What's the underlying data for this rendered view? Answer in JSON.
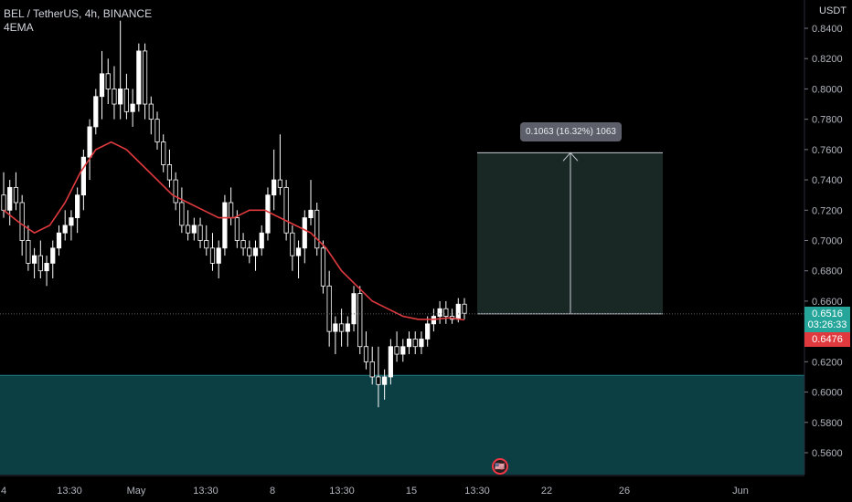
{
  "header": {
    "symbol_line": "BEL / TetherUS, 4h, BINANCE",
    "indicator": "4EMA"
  },
  "price_axis": {
    "currency": "USDT",
    "ticks": [
      "0.8400",
      "0.8200",
      "0.8000",
      "0.7800",
      "0.7600",
      "0.7400",
      "0.7200",
      "0.7000",
      "0.6800",
      "0.6600",
      "0.6400",
      "0.6200",
      "0.6000",
      "0.5800",
      "0.5600"
    ],
    "current_price": "0.6516",
    "countdown": "03:26:33",
    "ema_price": "0.6476"
  },
  "time_axis": {
    "labels": [
      "4",
      "13:30",
      "May",
      "13:30",
      "8",
      "13:30",
      "15",
      "13:30",
      "22",
      "26",
      "Jun"
    ]
  },
  "measure_tool": {
    "label": "0.1063 (16.32%) 1063"
  },
  "colors": {
    "background": "#000000",
    "up_candle": "#ffffff",
    "down_candle": "#ffffff",
    "ema_line": "#e03a3e",
    "demand_zone": "#0c3f43",
    "measure_box": "#1c2b29",
    "price_tag": "#26a69a",
    "ema_tag": "#e03a3e"
  },
  "chart_data": {
    "type": "candlestick",
    "symbol": "BEL / TetherUS",
    "interval": "4h",
    "exchange": "BINANCE",
    "ylim": [
      0.545,
      0.845
    ],
    "candles": [
      [
        0.73,
        0.745,
        0.715,
        0.72
      ],
      [
        0.72,
        0.74,
        0.71,
        0.735
      ],
      [
        0.735,
        0.745,
        0.72,
        0.725
      ],
      [
        0.725,
        0.73,
        0.69,
        0.7
      ],
      [
        0.7,
        0.71,
        0.68,
        0.685
      ],
      [
        0.685,
        0.695,
        0.675,
        0.69
      ],
      [
        0.69,
        0.7,
        0.675,
        0.68
      ],
      [
        0.68,
        0.69,
        0.67,
        0.685
      ],
      [
        0.685,
        0.7,
        0.675,
        0.695
      ],
      [
        0.695,
        0.71,
        0.69,
        0.705
      ],
      [
        0.705,
        0.72,
        0.7,
        0.71
      ],
      [
        0.71,
        0.72,
        0.7,
        0.715
      ],
      [
        0.715,
        0.735,
        0.705,
        0.73
      ],
      [
        0.73,
        0.76,
        0.72,
        0.755
      ],
      [
        0.755,
        0.78,
        0.74,
        0.775
      ],
      [
        0.775,
        0.8,
        0.77,
        0.795
      ],
      [
        0.795,
        0.825,
        0.78,
        0.81
      ],
      [
        0.81,
        0.82,
        0.79,
        0.8
      ],
      [
        0.8,
        0.815,
        0.78,
        0.79
      ],
      [
        0.79,
        0.845,
        0.78,
        0.8
      ],
      [
        0.8,
        0.81,
        0.78,
        0.785
      ],
      [
        0.785,
        0.8,
        0.775,
        0.79
      ],
      [
        0.79,
        0.83,
        0.785,
        0.825
      ],
      [
        0.825,
        0.83,
        0.78,
        0.79
      ],
      [
        0.79,
        0.795,
        0.77,
        0.78
      ],
      [
        0.78,
        0.785,
        0.76,
        0.765
      ],
      [
        0.765,
        0.77,
        0.745,
        0.75
      ],
      [
        0.75,
        0.76,
        0.735,
        0.74
      ],
      [
        0.74,
        0.745,
        0.72,
        0.725
      ],
      [
        0.725,
        0.735,
        0.705,
        0.71
      ],
      [
        0.71,
        0.72,
        0.7,
        0.705
      ],
      [
        0.705,
        0.715,
        0.7,
        0.71
      ],
      [
        0.71,
        0.715,
        0.695,
        0.7
      ],
      [
        0.7,
        0.71,
        0.69,
        0.695
      ],
      [
        0.695,
        0.705,
        0.68,
        0.685
      ],
      [
        0.685,
        0.7,
        0.675,
        0.695
      ],
      [
        0.695,
        0.73,
        0.69,
        0.725
      ],
      [
        0.725,
        0.735,
        0.71,
        0.715
      ],
      [
        0.715,
        0.72,
        0.695,
        0.7
      ],
      [
        0.7,
        0.705,
        0.69,
        0.695
      ],
      [
        0.695,
        0.7,
        0.685,
        0.69
      ],
      [
        0.69,
        0.7,
        0.68,
        0.695
      ],
      [
        0.695,
        0.71,
        0.69,
        0.705
      ],
      [
        0.705,
        0.735,
        0.7,
        0.73
      ],
      [
        0.73,
        0.76,
        0.72,
        0.74
      ],
      [
        0.74,
        0.77,
        0.73,
        0.735
      ],
      [
        0.735,
        0.74,
        0.7,
        0.705
      ],
      [
        0.705,
        0.71,
        0.68,
        0.69
      ],
      [
        0.69,
        0.7,
        0.675,
        0.695
      ],
      [
        0.695,
        0.72,
        0.685,
        0.715
      ],
      [
        0.715,
        0.74,
        0.71,
        0.72
      ],
      [
        0.72,
        0.725,
        0.69,
        0.695
      ],
      [
        0.695,
        0.7,
        0.665,
        0.67
      ],
      [
        0.67,
        0.68,
        0.63,
        0.64
      ],
      [
        0.64,
        0.65,
        0.625,
        0.645
      ],
      [
        0.645,
        0.655,
        0.63,
        0.64
      ],
      [
        0.64,
        0.65,
        0.63,
        0.645
      ],
      [
        0.645,
        0.67,
        0.64,
        0.665
      ],
      [
        0.665,
        0.67,
        0.625,
        0.63
      ],
      [
        0.63,
        0.64,
        0.615,
        0.62
      ],
      [
        0.62,
        0.63,
        0.605,
        0.61
      ],
      [
        0.61,
        0.63,
        0.59,
        0.605
      ],
      [
        0.605,
        0.615,
        0.595,
        0.61
      ],
      [
        0.61,
        0.635,
        0.605,
        0.63
      ],
      [
        0.63,
        0.64,
        0.62,
        0.625
      ],
      [
        0.625,
        0.635,
        0.62,
        0.63
      ],
      [
        0.63,
        0.64,
        0.625,
        0.635
      ],
      [
        0.635,
        0.64,
        0.625,
        0.63
      ],
      [
        0.63,
        0.64,
        0.625,
        0.635
      ],
      [
        0.635,
        0.65,
        0.63,
        0.645
      ],
      [
        0.645,
        0.655,
        0.64,
        0.65
      ],
      [
        0.65,
        0.66,
        0.645,
        0.655
      ],
      [
        0.655,
        0.66,
        0.645,
        0.65
      ],
      [
        0.65,
        0.655,
        0.645,
        0.648
      ],
      [
        0.648,
        0.662,
        0.646,
        0.658
      ],
      [
        0.658,
        0.662,
        0.648,
        0.652
      ]
    ],
    "ema_4": [
      0.72,
      0.712,
      0.705,
      0.71,
      0.725,
      0.745,
      0.76,
      0.765,
      0.76,
      0.75,
      0.74,
      0.73,
      0.725,
      0.72,
      0.715,
      0.715,
      0.72,
      0.72,
      0.715,
      0.71,
      0.705,
      0.695,
      0.68,
      0.67,
      0.66,
      0.655,
      0.65,
      0.648,
      0.648,
      0.649,
      0.6476
    ],
    "current_price": 0.6516,
    "ema_value": 0.6476,
    "demand_zone": [
      0.547,
      0.611
    ],
    "measure": {
      "from": 0.6516,
      "to": 0.7579,
      "change": 0.1063,
      "percent": 16.32,
      "ticks": 1063
    }
  }
}
